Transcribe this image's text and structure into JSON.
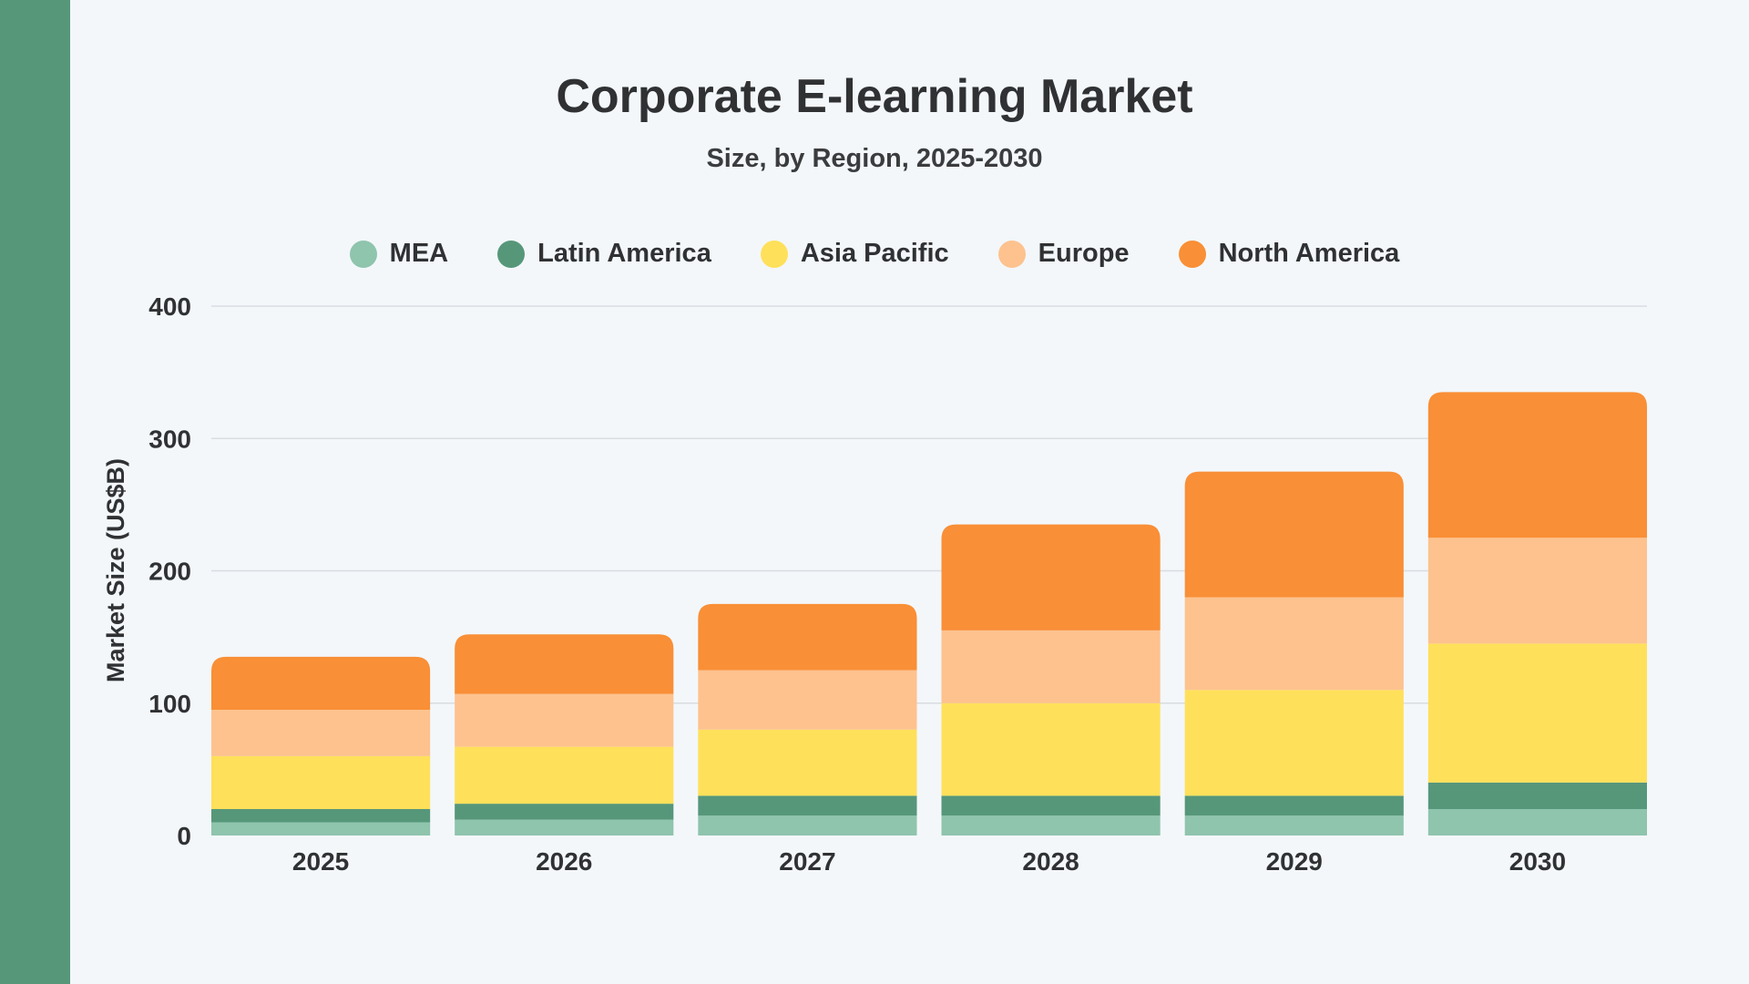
{
  "chart_data": {
    "type": "bar",
    "stacked": true,
    "title": "Corporate E-learning Market",
    "subtitle": "Size, by Region, 2025-2030",
    "xlabel": "",
    "ylabel": "Market Size (US$B)",
    "ylim": [
      0,
      400
    ],
    "yticks": [
      "0",
      "100",
      "200",
      "300",
      "400"
    ],
    "grid": true,
    "legend_position": "top",
    "categories": [
      "2025",
      "2026",
      "2027",
      "2028",
      "2029",
      "2030"
    ],
    "series": [
      {
        "name": "MEA",
        "color": "#8fc4ad",
        "values": [
          10,
          12,
          15,
          15,
          15,
          20
        ]
      },
      {
        "name": "Latin America",
        "color": "#56977a",
        "values": [
          10,
          12,
          15,
          15,
          15,
          20
        ]
      },
      {
        "name": "Asia Pacific",
        "color": "#ffe05a",
        "values": [
          40,
          43,
          50,
          70,
          80,
          105
        ]
      },
      {
        "name": "Europe",
        "color": "#fdc28e",
        "values": [
          35,
          40,
          45,
          55,
          70,
          80
        ]
      },
      {
        "name": "North America",
        "color": "#f98f36",
        "values": [
          40,
          45,
          50,
          80,
          95,
          110
        ]
      }
    ]
  }
}
